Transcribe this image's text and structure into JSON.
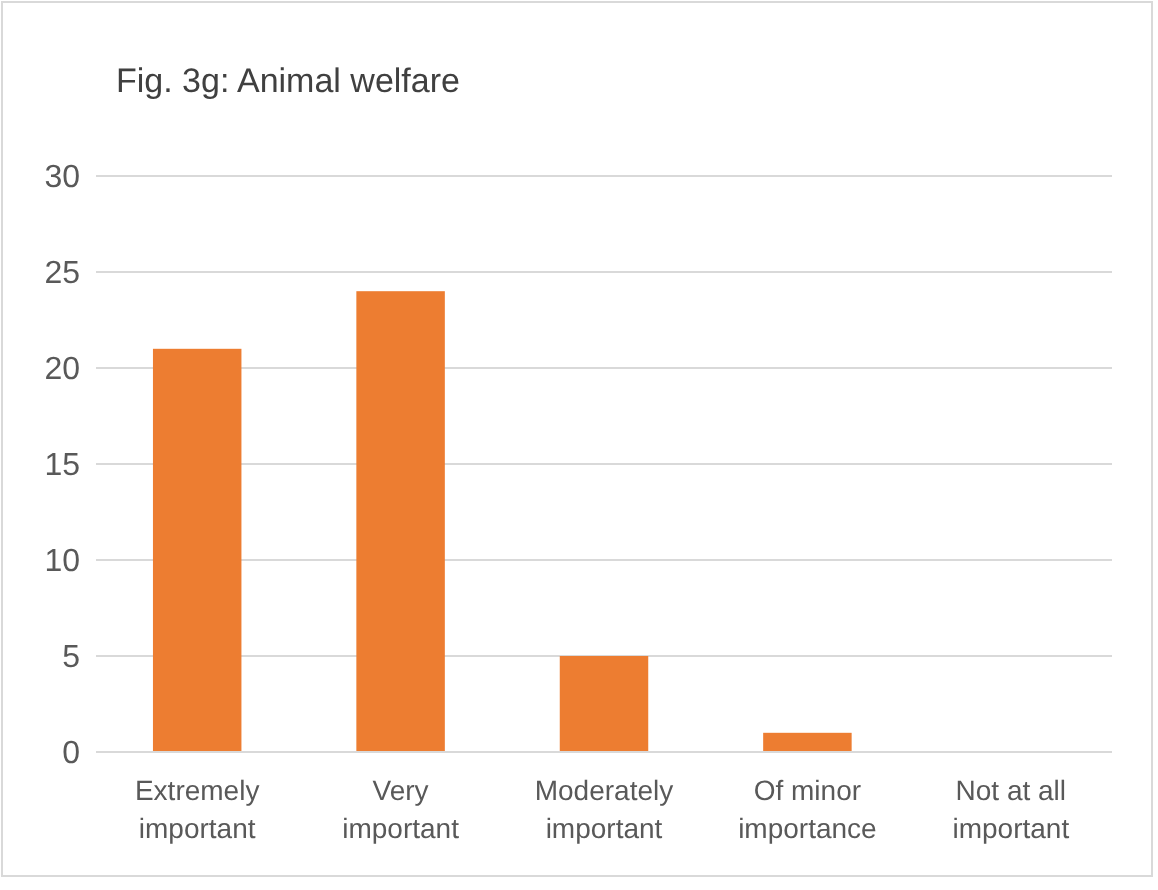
{
  "chart_data": {
    "type": "bar",
    "title": "Fig. 3g: Animal welfare",
    "categories": [
      "Extremely important",
      "Very important",
      "Moderately important",
      "Of minor importance",
      "Not at all important"
    ],
    "values": [
      21,
      24,
      5,
      1,
      0
    ],
    "color": "#ed7d31",
    "ylim": [
      0,
      30
    ],
    "yticks": [
      0,
      5,
      10,
      15,
      20,
      25,
      30
    ],
    "grid": "y"
  }
}
